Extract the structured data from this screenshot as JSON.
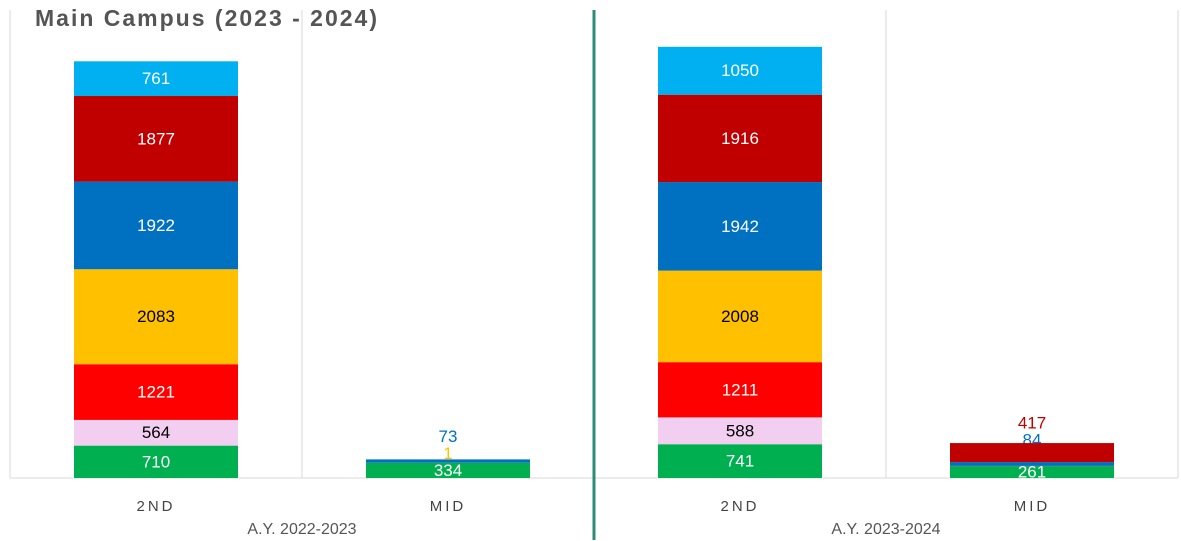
{
  "chart_data": {
    "type": "bar",
    "stacked": true,
    "title": "Main Campus (2023 - 2024)",
    "categories": [
      "2ND",
      "MID",
      "2ND",
      "MID"
    ],
    "groups": [
      "A.Y. 2022-2023",
      "A.Y. 2023-2024"
    ],
    "series": [
      {
        "color": "#00b050",
        "values": [
          710,
          334,
          741,
          261
        ]
      },
      {
        "color": "#f2cef0",
        "values": [
          564,
          null,
          588,
          null
        ]
      },
      {
        "color": "#ff0000",
        "values": [
          1221,
          null,
          1211,
          4
        ]
      },
      {
        "color": "#ffc000",
        "values": [
          2083,
          1,
          2008,
          null
        ]
      },
      {
        "color": "#0070c0",
        "values": [
          1922,
          73,
          1942,
          84
        ]
      },
      {
        "color": "#c00000",
        "values": [
          1877,
          null,
          1916,
          417
        ]
      },
      {
        "color": "#00b0f0",
        "values": [
          761,
          null,
          1050,
          null
        ]
      }
    ],
    "ylim": [
      0,
      10000
    ],
    "grid": true
  }
}
